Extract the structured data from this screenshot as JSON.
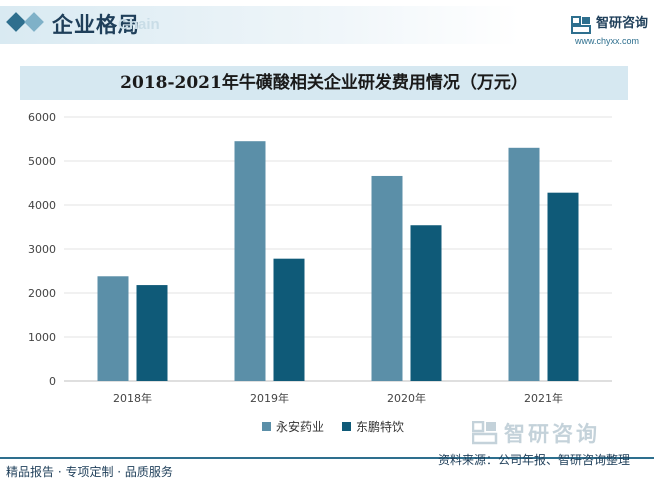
{
  "header": {
    "section_title": "企业格局",
    "ghost_text": "Chain",
    "brand_name": "智研咨询",
    "brand_url": "www.chyxx.com"
  },
  "colors": {
    "series_1": "#5b8fa8",
    "series_2": "#0f5a78",
    "accent": "#2e6f8e"
  },
  "chart_data": {
    "type": "bar",
    "title": "2018-2021年牛磺酸相关企业研发费用情况（万元）",
    "xlabel": "",
    "ylabel": "",
    "categories": [
      "2018年",
      "2019年",
      "2020年",
      "2021年"
    ],
    "series": [
      {
        "name": "永安药业",
        "values": [
          2380,
          5450,
          4660,
          5300
        ]
      },
      {
        "name": "东鹏特饮",
        "values": [
          2180,
          2780,
          3540,
          4280
        ]
      }
    ],
    "ylim": [
      0,
      6000
    ],
    "yticks": [
      "0",
      "1000",
      "2000",
      "3000",
      "4000",
      "5000",
      "6000"
    ],
    "grid": true,
    "legend": "bottom-center"
  },
  "watermark": {
    "text": "智研咨询"
  },
  "footer": {
    "left": "精品报告 · 专项定制 · 品质服务",
    "right": "资料来源：公司年报、智研咨询整理"
  }
}
